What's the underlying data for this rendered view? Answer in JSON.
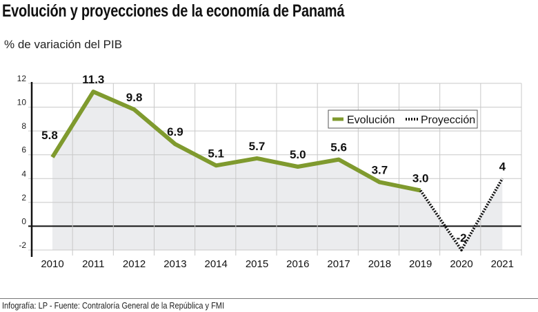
{
  "title": "Evolución y proyecciones de la economía de Panamá",
  "subtitle": "% de variación del PIB",
  "footer": "Infografía: LP - Fuente: Contraloría General de la República y FMI",
  "chart_data": {
    "type": "line",
    "title": "Evolución y proyecciones de la economía de Panamá",
    "ylabel": "% de variación del PIB",
    "categories": [
      "2010",
      "2011",
      "2012",
      "2013",
      "2014",
      "2015",
      "2016",
      "2017",
      "2018",
      "2019",
      "2020",
      "2021"
    ],
    "series": [
      {
        "name": "Evolución",
        "style": "solid",
        "color": "#7f9a2e",
        "x": [
          "2010",
          "2011",
          "2012",
          "2013",
          "2014",
          "2015",
          "2016",
          "2017",
          "2018",
          "2019"
        ],
        "values": [
          5.8,
          11.3,
          9.8,
          6.9,
          5.1,
          5.7,
          5.0,
          5.6,
          3.7,
          3.0
        ],
        "labels": [
          "5.8",
          "11.3",
          "9.8",
          "6.9",
          "5.1",
          "5.7",
          "5.0",
          "5.6",
          "3.7",
          "3.0"
        ]
      },
      {
        "name": "Proyección",
        "style": "dotted",
        "color": "#111111",
        "x": [
          "2019",
          "2020",
          "2021"
        ],
        "values": [
          3.0,
          -2,
          4
        ],
        "labels": [
          "",
          "-2",
          "4"
        ]
      }
    ],
    "ylim": [
      -2,
      12
    ],
    "yticks": [
      -2,
      0,
      2,
      4,
      6,
      8,
      10,
      12
    ],
    "grid": true,
    "legend": "top-right",
    "colors": {
      "negative_label": "#c8174f",
      "area": "#ebecee",
      "grid": "#c8c8c8"
    }
  }
}
